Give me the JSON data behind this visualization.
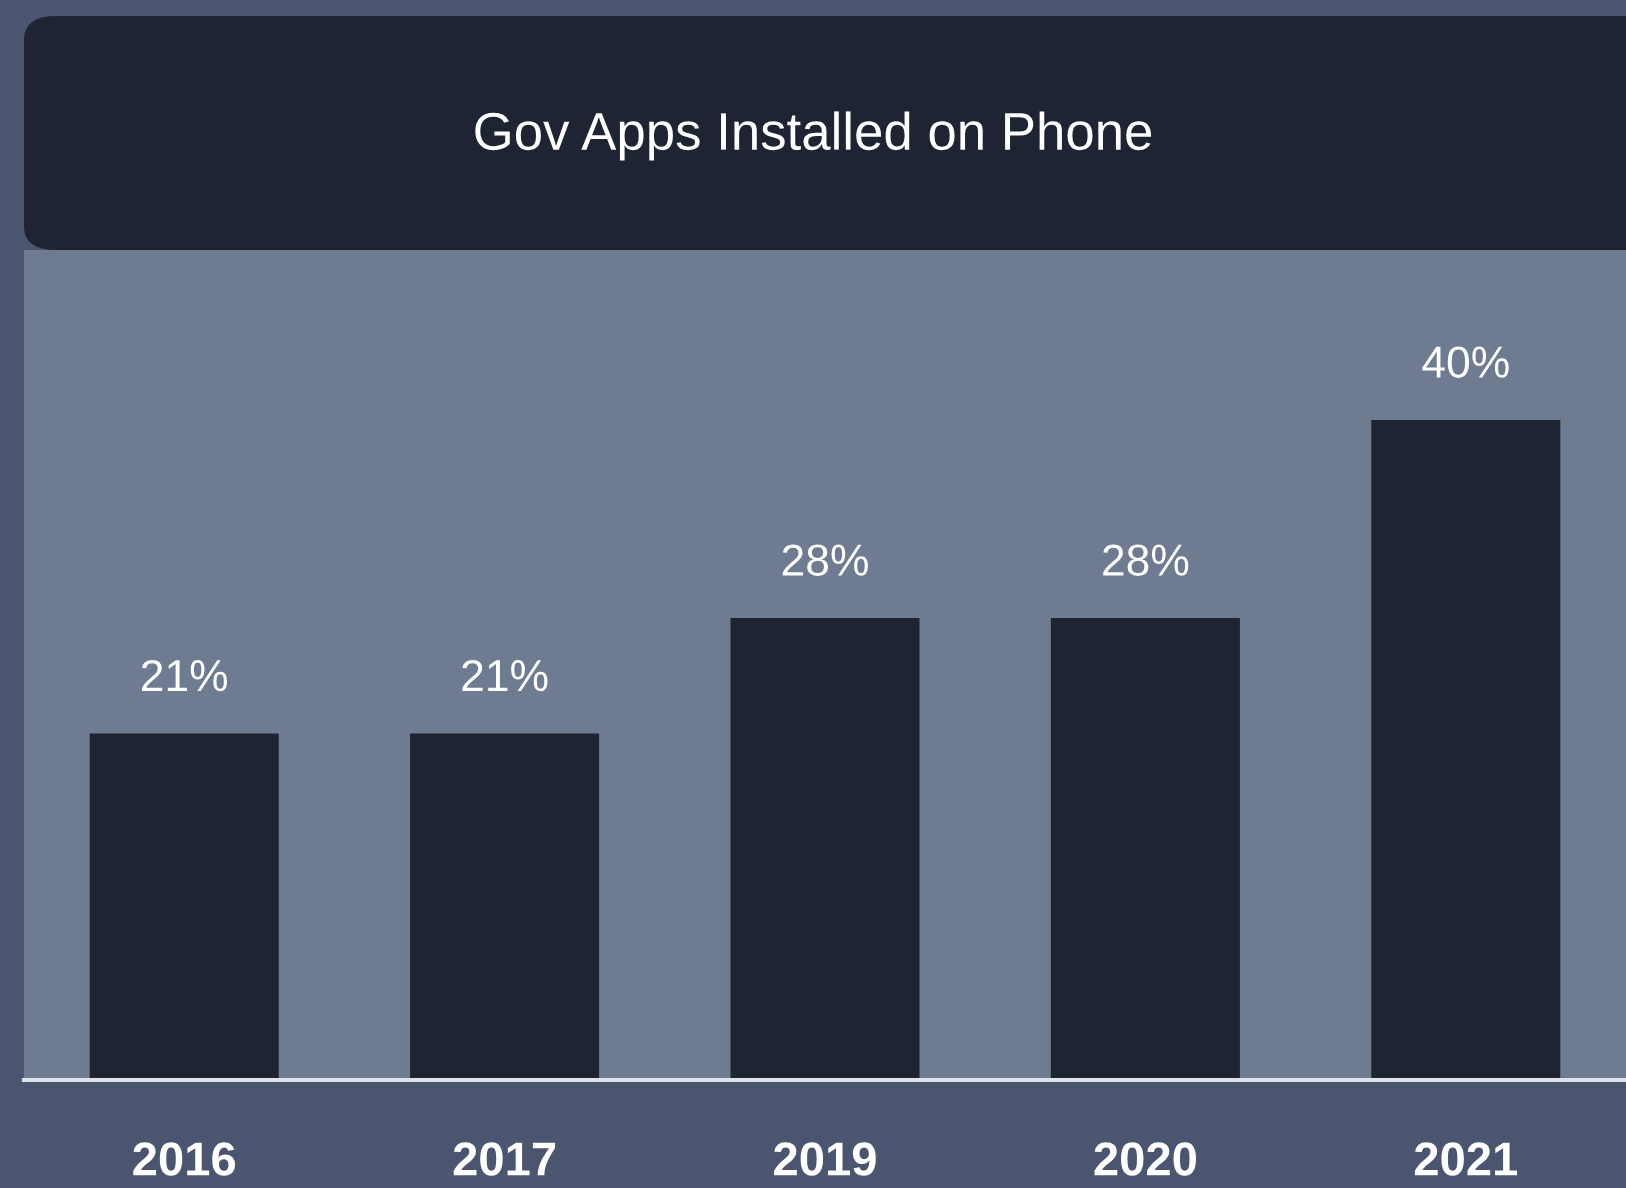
{
  "chart_data": {
    "type": "bar",
    "title": "Gov Apps Installed on Phone",
    "categories": [
      "2016",
      "2017",
      "2019",
      "2020",
      "2021"
    ],
    "values": [
      21,
      21,
      28,
      28,
      40
    ],
    "value_labels": [
      "21%",
      "21%",
      "28%",
      "28%",
      "40%"
    ],
    "color": "#1f2433",
    "legend": false
  }
}
